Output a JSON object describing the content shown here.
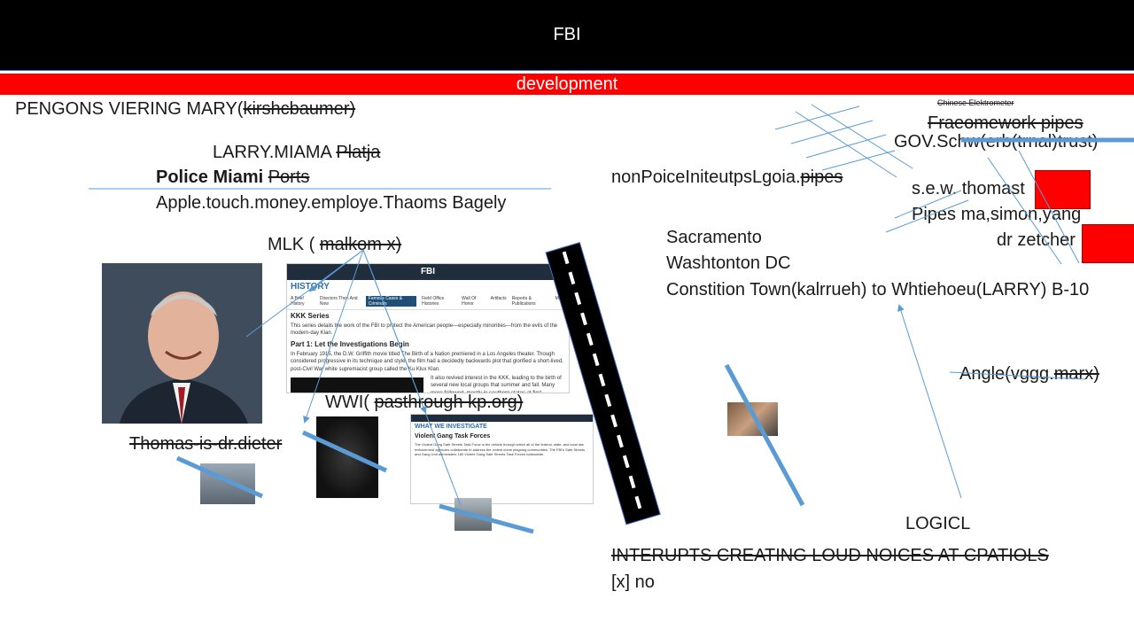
{
  "banner": {
    "title": "FBI",
    "subtitle": "development"
  },
  "left": {
    "line1_a": "PENGONS VIERING MARY(",
    "line1_b": "kirshcbaumer)",
    "line2_a": "LARRY.MIAMA ",
    "line2_b": "Platja",
    "line3_a": "Police Miami ",
    "line3_b": "Ports",
    "line4": "Apple.touch.money.employe.Thaoms Bagely",
    "mlk_a": "MLK ( ",
    "mlk_b": "malkom x)",
    "wwi_a": "WWI( ",
    "wwi_b": "pasthrough kp.org)",
    "thomas": "Thomas-is-dr.dieter"
  },
  "doc1": {
    "brand": "FBI",
    "section": "HISTORY",
    "tabs": [
      "A Brief History",
      "Directors Then And Now",
      "Famous Cases & Criminals",
      "Field Office Histories",
      "Wall Of Honor",
      "Artifacts",
      "Reports & Publications",
      "More"
    ],
    "title": "KKK Series",
    "intro": "This series details the work of the FBI to protect the American people—especially minorities—from the evils of the modern-day Klan.",
    "part": "Part 1: Let the Investigations Begin",
    "body": "In February 1915, the D.W. Griffith movie titled The Birth of a Nation premiered in a Los Angeles theater. Though considered progressive in its technique and style, the film had a decidedly backwards plot that glorified a short-lived, post-Civil War white supremacist group called the Ku Klux Klan.",
    "side": "It also revived interest in the KKK, leading to the birth of several new local groups that summer and fall. Many more followed, mostly in southern states at first."
  },
  "doc2": {
    "section": "WHAT WE INVESTIGATE",
    "title": "Violent Gang Task Forces",
    "body": "The Violent Gang Safe Streets Task Force is the vehicle through which all of the federal, state, and local law enforcement agencies collaborate to address the violent crime plaguing communities. The FBI's Safe Streets and Gang Unit administers 160 Violent Gang Safe Streets Task Forces nationwide."
  },
  "right": {
    "chinese": "Chinese Elektrometer",
    "framework": "Fraeomework pipes",
    "gov": "GOV.Schw(erb(trnal)trust)",
    "nonpolice_a": "nonPoiceIniteutpsLgoia.",
    "nonpolice_b": "pipes",
    "sew": "s.e.w. thomast",
    "pipes": "Pipes   ma,simon,yang",
    "zetcher": "dr zetcher",
    "sacramento": "Sacramento",
    "washington": "Washtonton DC",
    "constition": "Constition Town(kalrrueh) to Whtiehoeu(LARRY) B-10",
    "angle_a": "Angle(vggg.",
    "angle_b": "marx)",
    "logicl": "LOGICL",
    "interupts": "INTERUPTS CREATING LOUD NOICES AT CPATIOLS",
    "checkbox": "[x] no"
  },
  "colors": {
    "banner": "#000000",
    "subbar": "#ff0000",
    "accent": "#4472c4",
    "stroke": "#5b9bd5"
  }
}
